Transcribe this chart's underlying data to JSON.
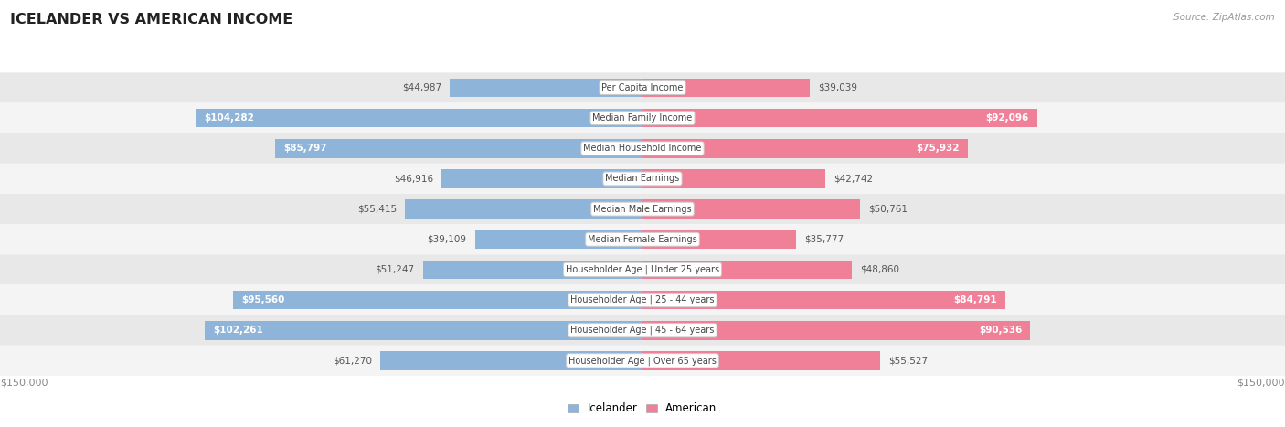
{
  "title": "ICELANDER VS AMERICAN INCOME",
  "source": "Source: ZipAtlas.com",
  "categories": [
    "Per Capita Income",
    "Median Family Income",
    "Median Household Income",
    "Median Earnings",
    "Median Male Earnings",
    "Median Female Earnings",
    "Householder Age | Under 25 years",
    "Householder Age | 25 - 44 years",
    "Householder Age | 45 - 64 years",
    "Householder Age | Over 65 years"
  ],
  "icelander_values": [
    44987,
    104282,
    85797,
    46916,
    55415,
    39109,
    51247,
    95560,
    102261,
    61270
  ],
  "american_values": [
    39039,
    92096,
    75932,
    42742,
    50761,
    35777,
    48860,
    84791,
    90536,
    55527
  ],
  "max_value": 150000,
  "icelander_color": "#8fb4d9",
  "american_color": "#f08098",
  "row_even_color": "#e8e8e8",
  "row_odd_color": "#f4f4f4",
  "label_box_color": "#ffffff",
  "label_box_border": "#cccccc",
  "title_color": "#222222",
  "source_color": "#999999",
  "axis_label_color": "#888888",
  "outside_label_color": "#555555",
  "inside_label_color": "#ffffff",
  "figure_bg": "#ffffff",
  "inside_threshold": 65000
}
